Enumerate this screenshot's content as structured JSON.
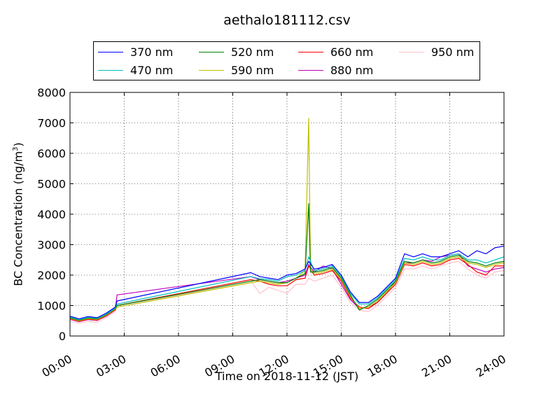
{
  "chart_data": {
    "type": "line",
    "title": "aethalo181112.csv",
    "xlabel": "Time on 2018-11-12 (JST)",
    "ylabel_main": "BC Concentration (ng/m",
    "ylabel_sup": "3",
    "ylabel_end": ")",
    "xlim_hours": [
      0,
      24
    ],
    "ylim": [
      0,
      8000
    ],
    "x_ticks": [
      "00:00",
      "03:00",
      "06:00",
      "09:00",
      "12:00",
      "15:00",
      "18:00",
      "21:00",
      "24:00"
    ],
    "y_ticks": [
      "0",
      "1000",
      "2000",
      "3000",
      "4000",
      "5000",
      "6000",
      "7000",
      "8000"
    ],
    "grid": true,
    "legend_position": "top",
    "series": [
      {
        "name": "370 nm",
        "color": "#0000ff",
        "points": [
          [
            0,
            650
          ],
          [
            0.5,
            560
          ],
          [
            1,
            640
          ],
          [
            1.5,
            600
          ],
          [
            2,
            750
          ],
          [
            2.5,
            950
          ],
          [
            2.6,
            1150
          ],
          [
            10,
            2080
          ],
          [
            10.5,
            1950
          ],
          [
            11,
            1900
          ],
          [
            11.5,
            1850
          ],
          [
            12,
            2000
          ],
          [
            12.5,
            2050
          ],
          [
            13,
            2200
          ],
          [
            13.2,
            2450
          ],
          [
            13.5,
            2200
          ],
          [
            14,
            2250
          ],
          [
            14.5,
            2350
          ],
          [
            15,
            2000
          ],
          [
            15.5,
            1450
          ],
          [
            16,
            1100
          ],
          [
            16.5,
            1100
          ],
          [
            17,
            1300
          ],
          [
            17.5,
            1600
          ],
          [
            18,
            1900
          ],
          [
            18.5,
            2700
          ],
          [
            19,
            2600
          ],
          [
            19.5,
            2700
          ],
          [
            20,
            2600
          ],
          [
            20.5,
            2600
          ],
          [
            21,
            2700
          ],
          [
            21.5,
            2800
          ],
          [
            22,
            2600
          ],
          [
            22.5,
            2800
          ],
          [
            23,
            2700
          ],
          [
            23.5,
            2900
          ],
          [
            24,
            2950
          ]
        ]
      },
      {
        "name": "470 nm",
        "color": "#00bfbf",
        "points": [
          [
            0,
            620
          ],
          [
            0.5,
            540
          ],
          [
            1,
            610
          ],
          [
            1.5,
            580
          ],
          [
            2,
            720
          ],
          [
            2.5,
            920
          ],
          [
            2.6,
            1050
          ],
          [
            10,
            1950
          ],
          [
            10.5,
            1880
          ],
          [
            11,
            1850
          ],
          [
            11.5,
            1800
          ],
          [
            12,
            1950
          ],
          [
            12.5,
            2000
          ],
          [
            13,
            2150
          ],
          [
            13.2,
            2600
          ],
          [
            13.5,
            2150
          ],
          [
            14,
            2200
          ],
          [
            14.5,
            2300
          ],
          [
            15,
            1950
          ],
          [
            15.5,
            1400
          ],
          [
            16,
            1050
          ],
          [
            16.5,
            1050
          ],
          [
            17,
            1250
          ],
          [
            17.5,
            1550
          ],
          [
            18,
            1850
          ],
          [
            18.5,
            2550
          ],
          [
            19,
            2500
          ],
          [
            19.5,
            2600
          ],
          [
            20,
            2500
          ],
          [
            20.5,
            2500
          ],
          [
            21,
            2650
          ],
          [
            21.5,
            2700
          ],
          [
            22,
            2500
          ],
          [
            22.5,
            2500
          ],
          [
            23,
            2400
          ],
          [
            23.5,
            2500
          ],
          [
            24,
            2600
          ]
        ]
      },
      {
        "name": "520 nm",
        "color": "#008000",
        "points": [
          [
            0,
            600
          ],
          [
            0.5,
            520
          ],
          [
            1,
            590
          ],
          [
            1.5,
            560
          ],
          [
            2,
            700
          ],
          [
            2.5,
            900
          ],
          [
            2.6,
            1000
          ],
          [
            10,
            1800
          ],
          [
            10.5,
            1850
          ],
          [
            11,
            1800
          ],
          [
            11.5,
            1750
          ],
          [
            12,
            1750
          ],
          [
            12.5,
            1900
          ],
          [
            13,
            2050
          ],
          [
            13.2,
            4350
          ],
          [
            13.3,
            2100
          ],
          [
            13.5,
            2100
          ],
          [
            14,
            2150
          ],
          [
            14.5,
            2250
          ],
          [
            15,
            1900
          ],
          [
            15.5,
            1350
          ],
          [
            16,
            850
          ],
          [
            16.5,
            1000
          ],
          [
            17,
            1200
          ],
          [
            17.5,
            1500
          ],
          [
            18,
            1800
          ],
          [
            18.5,
            2450
          ],
          [
            19,
            2400
          ],
          [
            19.5,
            2500
          ],
          [
            20,
            2400
          ],
          [
            20.5,
            2450
          ],
          [
            21,
            2600
          ],
          [
            21.5,
            2650
          ],
          [
            22,
            2450
          ],
          [
            22.5,
            2400
          ],
          [
            23,
            2300
          ],
          [
            23.5,
            2400
          ],
          [
            24,
            2450
          ]
        ]
      },
      {
        "name": "590 nm",
        "color": "#bfbf00",
        "points": [
          [
            0,
            580
          ],
          [
            0.5,
            500
          ],
          [
            1,
            570
          ],
          [
            1.5,
            540
          ],
          [
            2,
            680
          ],
          [
            2.5,
            880
          ],
          [
            2.6,
            950
          ],
          [
            10,
            1750
          ],
          [
            10.5,
            1800
          ],
          [
            11,
            1750
          ],
          [
            11.5,
            1700
          ],
          [
            12,
            1750
          ],
          [
            12.5,
            1900
          ],
          [
            13,
            2150
          ],
          [
            13.2,
            7150
          ],
          [
            13.3,
            2200
          ],
          [
            13.5,
            2050
          ],
          [
            14,
            2100
          ],
          [
            14.5,
            2200
          ],
          [
            15,
            1850
          ],
          [
            15.5,
            1300
          ],
          [
            16,
            900
          ],
          [
            16.5,
            950
          ],
          [
            17,
            1150
          ],
          [
            17.5,
            1450
          ],
          [
            18,
            1750
          ],
          [
            18.5,
            2400
          ],
          [
            19,
            2350
          ],
          [
            19.5,
            2450
          ],
          [
            20,
            2350
          ],
          [
            20.5,
            2400
          ],
          [
            21,
            2550
          ],
          [
            21.5,
            2600
          ],
          [
            22,
            2400
          ],
          [
            22.5,
            2350
          ],
          [
            23,
            2250
          ],
          [
            23.5,
            2350
          ],
          [
            24,
            2400
          ]
        ]
      },
      {
        "name": "660 nm",
        "color": "#ff0000",
        "points": [
          [
            0,
            560
          ],
          [
            0.5,
            480
          ],
          [
            1,
            550
          ],
          [
            1.5,
            520
          ],
          [
            2,
            660
          ],
          [
            2.5,
            860
          ],
          [
            2.6,
            1000
          ],
          [
            10,
            1850
          ],
          [
            10.5,
            1800
          ],
          [
            11,
            1700
          ],
          [
            11.5,
            1650
          ],
          [
            12,
            1650
          ],
          [
            12.5,
            1850
          ],
          [
            13,
            1900
          ],
          [
            13.2,
            2300
          ],
          [
            13.5,
            2000
          ],
          [
            14,
            2050
          ],
          [
            14.5,
            2150
          ],
          [
            15,
            1800
          ],
          [
            15.5,
            1250
          ],
          [
            16,
            950
          ],
          [
            16.5,
            900
          ],
          [
            17,
            1100
          ],
          [
            17.5,
            1400
          ],
          [
            18,
            1700
          ],
          [
            18.5,
            2350
          ],
          [
            19,
            2300
          ],
          [
            19.5,
            2400
          ],
          [
            20,
            2300
          ],
          [
            20.5,
            2350
          ],
          [
            21,
            2500
          ],
          [
            21.5,
            2550
          ],
          [
            22,
            2350
          ],
          [
            22.5,
            2100
          ],
          [
            23,
            2000
          ],
          [
            23.5,
            2300
          ],
          [
            24,
            2300
          ]
        ]
      },
      {
        "name": "880 nm",
        "color": "#bf00bf",
        "points": [
          [
            0,
            550
          ],
          [
            0.5,
            470
          ],
          [
            1,
            540
          ],
          [
            1.5,
            510
          ],
          [
            2,
            650
          ],
          [
            2.5,
            850
          ],
          [
            2.6,
            1350
          ],
          [
            10,
            1950
          ],
          [
            10.5,
            1850
          ],
          [
            11,
            1800
          ],
          [
            11.5,
            1750
          ],
          [
            12,
            1800
          ],
          [
            12.5,
            1900
          ],
          [
            13,
            2000
          ],
          [
            13.2,
            2350
          ],
          [
            13.5,
            2100
          ],
          [
            14,
            2300
          ],
          [
            14.5,
            2200
          ],
          [
            15,
            1700
          ],
          [
            15.5,
            1200
          ],
          [
            16,
            900
          ],
          [
            16.5,
            950
          ],
          [
            17,
            1100
          ],
          [
            17.5,
            1400
          ],
          [
            18,
            1800
          ],
          [
            18.5,
            2400
          ],
          [
            19,
            2400
          ],
          [
            19.5,
            2500
          ],
          [
            20,
            2450
          ],
          [
            20.5,
            2600
          ],
          [
            21,
            2650
          ],
          [
            21.5,
            2700
          ],
          [
            22,
            2300
          ],
          [
            22.5,
            2200
          ],
          [
            23,
            2100
          ],
          [
            23.5,
            2200
          ],
          [
            24,
            2250
          ]
        ]
      },
      {
        "name": "950 nm",
        "color": "#ffc0cb",
        "points": [
          [
            0,
            500
          ],
          [
            0.5,
            420
          ],
          [
            1,
            480
          ],
          [
            1.5,
            450
          ],
          [
            2,
            600
          ],
          [
            2.5,
            800
          ],
          [
            2.6,
            950
          ],
          [
            10,
            1800
          ],
          [
            10.5,
            1400
          ],
          [
            11,
            1600
          ],
          [
            11.5,
            1500
          ],
          [
            12,
            1400
          ],
          [
            12.5,
            1700
          ],
          [
            13,
            1700
          ],
          [
            13.2,
            1900
          ],
          [
            13.5,
            1800
          ],
          [
            14,
            1900
          ],
          [
            14.5,
            2000
          ],
          [
            15,
            1600
          ],
          [
            15.5,
            1100
          ],
          [
            16,
            850
          ],
          [
            16.5,
            800
          ],
          [
            17,
            1000
          ],
          [
            17.5,
            1300
          ],
          [
            18,
            1600
          ],
          [
            18.5,
            2200
          ],
          [
            19,
            2200
          ],
          [
            19.5,
            2300
          ],
          [
            20,
            2200
          ],
          [
            20.5,
            2300
          ],
          [
            21,
            2400
          ],
          [
            21.5,
            2450
          ],
          [
            22,
            2200
          ],
          [
            22.5,
            2000
          ],
          [
            23,
            1900
          ],
          [
            23.5,
            2100
          ],
          [
            24,
            2150
          ]
        ]
      }
    ]
  }
}
